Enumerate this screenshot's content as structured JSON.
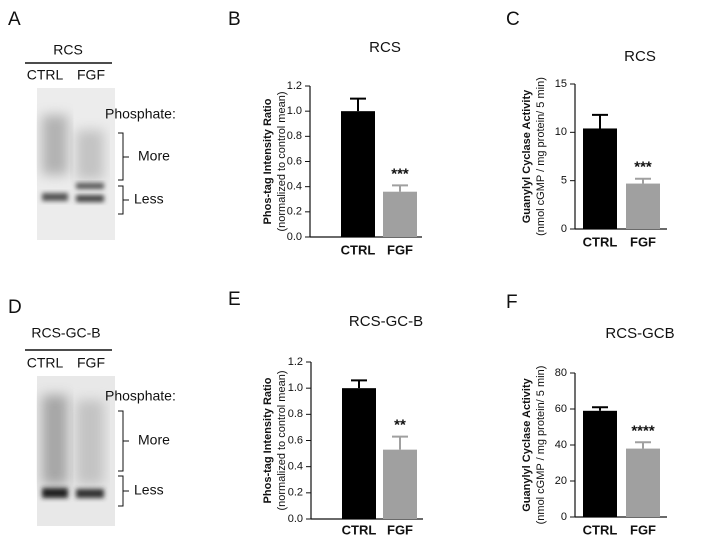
{
  "blots": [
    {
      "letter": "A",
      "title": "RCS",
      "lanes": [
        "CTRL",
        "FGF"
      ],
      "phosphate": "Phosphate:",
      "more": "More",
      "less": "Less"
    },
    {
      "letter": "D",
      "title": "RCS-GC-B",
      "lanes": [
        "CTRL",
        "FGF"
      ],
      "phosphate": "Phosphate:",
      "more": "More",
      "less": "Less"
    }
  ],
  "chart_data": [
    {
      "type": "bar",
      "letter": "B",
      "title": "RCS",
      "ylabel": "Phos-tag Intensity Ratio",
      "ylabel_note": "(normalized to control mean)",
      "categories": [
        "CTRL",
        "FGF"
      ],
      "values": [
        1.0,
        0.36
      ],
      "errors": [
        0.1,
        0.05
      ],
      "colors": [
        "#000000",
        "#a0a0a0"
      ],
      "annotations": [
        null,
        "***"
      ],
      "ylim": [
        0,
        1.2
      ],
      "yticks": [
        {
          "value": 0,
          "label": "0.0"
        },
        0.2,
        0.4,
        0.6,
        0.8,
        {
          "value": 1,
          "label": "1.0"
        },
        1.2
      ]
    },
    {
      "type": "bar",
      "letter": "C",
      "title": "RCS",
      "ylabel": "Guanylyl Cyclase Activity",
      "ylabel_note": "(nmol cGMP / mg protein/ 5 min)",
      "categories": [
        "CTRL",
        "FGF"
      ],
      "values": [
        10.4,
        4.7
      ],
      "errors": [
        1.4,
        0.5
      ],
      "colors": [
        "#000000",
        "#a0a0a0"
      ],
      "annotations": [
        null,
        "***"
      ],
      "ylim": [
        0,
        15
      ],
      "yticks": [
        0,
        5,
        10,
        15
      ]
    },
    {
      "type": "bar",
      "letter": "E",
      "title": "RCS-GC-B",
      "ylabel": "Phos-tag Intensity Ratio",
      "ylabel_note": "(normalized to control mean)",
      "categories": [
        "CTRL",
        "FGF"
      ],
      "values": [
        1.0,
        0.53
      ],
      "errors": [
        0.06,
        0.1
      ],
      "colors": [
        "#000000",
        "#a0a0a0"
      ],
      "annotations": [
        null,
        "**"
      ],
      "ylim": [
        0,
        1.2
      ],
      "yticks": [
        {
          "value": 0,
          "label": "0.0"
        },
        0.2,
        0.4,
        0.6,
        0.8,
        {
          "value": 1,
          "label": "1.0"
        },
        1.2
      ]
    },
    {
      "type": "bar",
      "letter": "F",
      "title": "RCS-GCB",
      "ylabel": "Guanylyl Cyclase Activity",
      "ylabel_note": "(nmol cGMP / mg protein/ 5 min)",
      "categories": [
        "CTRL",
        "FGF"
      ],
      "values": [
        59,
        38
      ],
      "errors": [
        2,
        3.5
      ],
      "colors": [
        "#000000",
        "#a0a0a0"
      ],
      "annotations": [
        null,
        "****"
      ],
      "ylim": [
        0,
        80
      ],
      "yticks": [
        0,
        20,
        40,
        60,
        80
      ]
    }
  ]
}
